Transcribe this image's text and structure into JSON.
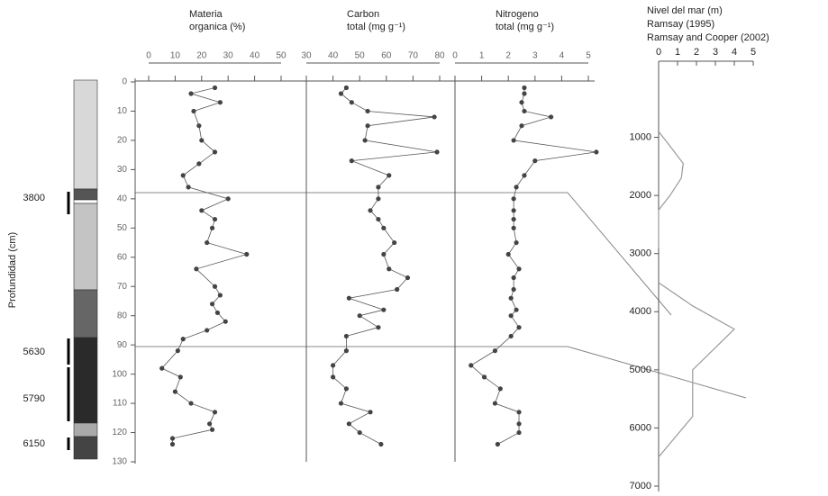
{
  "chart_data": [
    {
      "type": "line",
      "title_lines": [
        "Materia",
        "organica (%)"
      ],
      "y_label": "Profundidad (cm)",
      "ylim": [
        0,
        130
      ],
      "yticks": [
        0,
        10,
        20,
        30,
        40,
        50,
        60,
        70,
        80,
        90,
        100,
        110,
        120,
        130
      ],
      "xlim": [
        0,
        50
      ],
      "xticks": [
        0,
        10,
        20,
        30,
        40,
        50
      ],
      "color": "#555555",
      "age_labels": [
        3800,
        5630,
        5790,
        6150
      ],
      "depth": [
        2,
        4,
        7,
        10,
        15,
        20,
        24,
        28,
        32,
        36,
        40,
        44,
        47,
        50,
        55,
        59,
        64,
        70,
        73,
        76,
        79,
        82,
        85,
        88,
        92,
        98,
        101,
        106,
        110,
        113,
        117,
        119,
        122,
        124
      ],
      "values": [
        25,
        16,
        27,
        17,
        19,
        20,
        25,
        19,
        13,
        15,
        30,
        20,
        25,
        24,
        22,
        37,
        18,
        25,
        27,
        24,
        26,
        29,
        22,
        13,
        11,
        5,
        12,
        10,
        16,
        25,
        23,
        24,
        9,
        9
      ]
    },
    {
      "type": "line",
      "title_lines": [
        "Carbon",
        "total (mg g⁻¹)"
      ],
      "xlim": [
        30,
        80
      ],
      "xticks": [
        30,
        40,
        50,
        60,
        70,
        80
      ],
      "color": "#555555",
      "depth": [
        2,
        4,
        7,
        10,
        12,
        15,
        20,
        24,
        27,
        32,
        36,
        40,
        44,
        47,
        50,
        55,
        59,
        64,
        67,
        71,
        74,
        78,
        80,
        84,
        87,
        92,
        97,
        101,
        105,
        110,
        113,
        117,
        120,
        124
      ],
      "values": [
        45,
        43,
        47,
        53,
        78,
        53,
        52,
        79,
        47,
        61,
        57,
        57,
        54,
        57,
        59,
        63,
        59,
        61,
        68,
        64,
        46,
        59,
        50,
        57,
        45,
        45,
        40,
        40,
        45,
        43,
        54,
        46,
        50,
        58
      ]
    },
    {
      "type": "line",
      "title_lines": [
        "Nitrogeno",
        "total (mg g⁻¹)"
      ],
      "xlim": [
        0,
        5
      ],
      "xticks": [
        0,
        1,
        2,
        3,
        4,
        5
      ],
      "color": "#555555",
      "depth": [
        2,
        4,
        7,
        10,
        12,
        15,
        20,
        24,
        27,
        32,
        36,
        40,
        44,
        47,
        50,
        55,
        59,
        64,
        67,
        71,
        74,
        78,
        80,
        84,
        87,
        92,
        97,
        101,
        105,
        110,
        113,
        117,
        120,
        124
      ],
      "values": [
        2.6,
        2.6,
        2.5,
        2.6,
        3.6,
        2.5,
        2.2,
        5.3,
        3.0,
        2.6,
        2.3,
        2.2,
        2.2,
        2.2,
        2.2,
        2.3,
        2.0,
        2.4,
        2.2,
        2.2,
        2.1,
        2.3,
        2.1,
        2.4,
        2.1,
        1.5,
        0.6,
        1.1,
        1.7,
        1.5,
        2.4,
        2.4,
        2.4,
        1.6
      ]
    },
    {
      "type": "sealevel",
      "title": "Nivel del mar (m)",
      "xlim": [
        0,
        5
      ],
      "xticks": [
        0,
        1,
        2,
        3,
        4,
        5
      ],
      "ylim": [
        0,
        7000
      ],
      "yticks": [
        1000,
        2000,
        3000,
        4000,
        5000,
        6000,
        7000
      ],
      "series": [
        {
          "name": "Ramsay (1995)",
          "color": "#999999",
          "level": [
            0,
            0.6,
            1.3,
            1.2,
            0.6,
            0,
            0
          ],
          "age": [
            900,
            1150,
            1450,
            1700,
            2000,
            2250,
            2900
          ]
        },
        {
          "name": "Ramsay and Cooper (2002)",
          "color": "#999999",
          "level": [
            0,
            1.8,
            4,
            1.8,
            1.8,
            0
          ],
          "age": [
            3500,
            3900,
            4300,
            5000,
            5800,
            6500
          ]
        }
      ]
    }
  ]
}
